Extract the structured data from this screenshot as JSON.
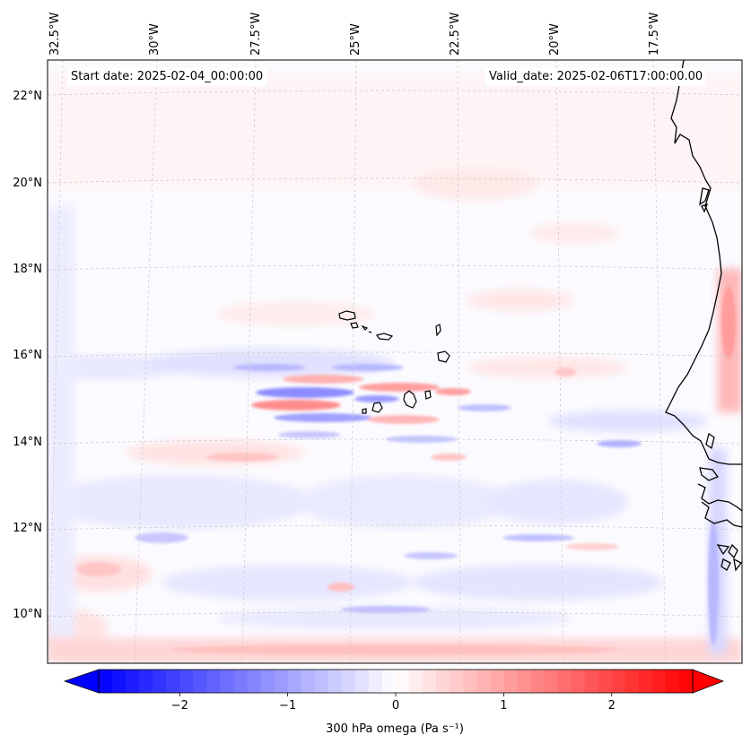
{
  "header": {
    "start_date": "Start date: 2025-02-04_00:00:00",
    "valid_date": "Valid_date: 2025-02-06T17:00:00.00"
  },
  "map": {
    "lon_labels": [
      "32.5°W",
      "30°W",
      "27.5°W",
      "25°W",
      "22.5°W",
      "20°W",
      "17.5°W"
    ],
    "lat_labels": [
      "22°N",
      "20°N",
      "18°N",
      "16°N",
      "14°N",
      "12°N",
      "10°N"
    ],
    "features": [
      "Cape Verde islands",
      "West African coastline"
    ]
  },
  "colorbar": {
    "label": "300 hPa omega (Pa s⁻¹)",
    "ticks": [
      "−2",
      "−1",
      "0",
      "1",
      "2"
    ],
    "range": [
      -2.75,
      2.75
    ],
    "negative_color": "#0000ff",
    "zero_color": "#ffffff",
    "positive_color": "#ff0000"
  }
}
